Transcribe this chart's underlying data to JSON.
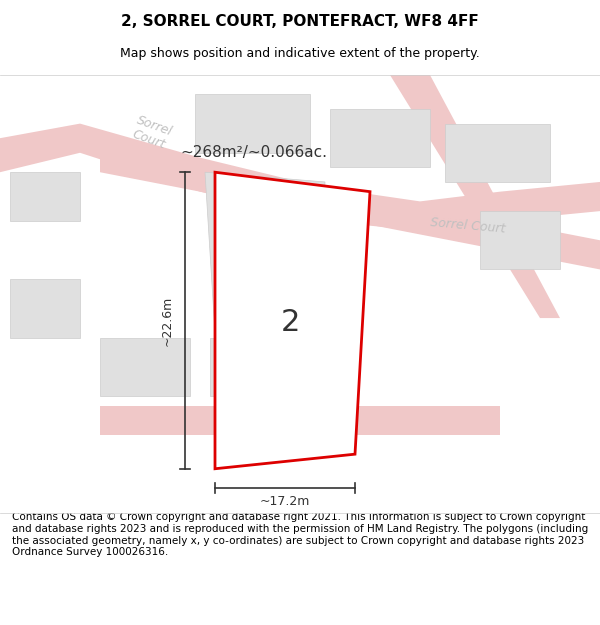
{
  "title": "2, SORREL COURT, PONTEFRACT, WF8 4FF",
  "subtitle": "Map shows position and indicative extent of the property.",
  "footer": "Contains OS data © Crown copyright and database right 2021. This information is subject to Crown copyright and database rights 2023 and is reproduced with the permission of HM Land Registry. The polygons (including the associated geometry, namely x, y co-ordinates) are subject to Crown copyright and database rights 2023 Ordnance Survey 100026316.",
  "area_label": "~268m²/~0.066ac.",
  "width_label": "~17.2m",
  "height_label": "~22.6m",
  "plot_number": "2",
  "bg_color": "#f5f5f5",
  "map_bg": "#ffffff",
  "road_color": "#f0c8c8",
  "building_color": "#e0e0e0",
  "plot_line_color": "#dd0000",
  "dim_line_color": "#333333",
  "road_label_color": "#aaaaaa",
  "title_fontsize": 11,
  "subtitle_fontsize": 9,
  "footer_fontsize": 7.5
}
